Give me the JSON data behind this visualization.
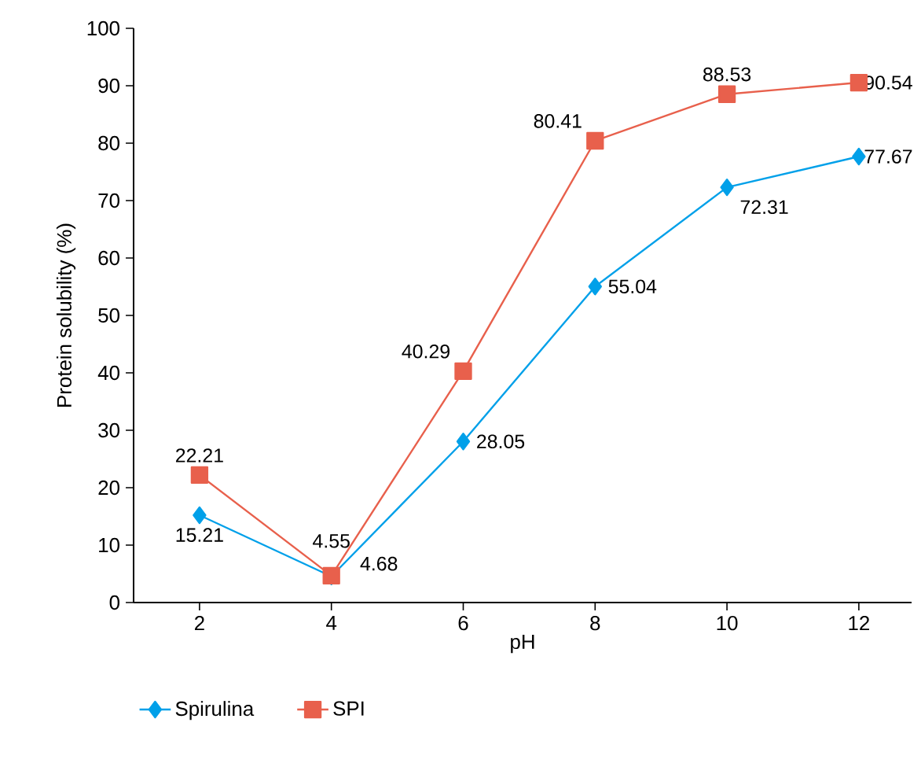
{
  "chart_data": {
    "type": "line",
    "xlabel": "pH",
    "ylabel": "Protein solubility (%)",
    "x": [
      2,
      4,
      6,
      8,
      10,
      12
    ],
    "xlim": [
      1,
      12.8
    ],
    "xticks": [
      2,
      4,
      6,
      8,
      10,
      12
    ],
    "ylim": [
      0,
      100
    ],
    "yticks": [
      0,
      10,
      20,
      30,
      40,
      50,
      60,
      70,
      80,
      90,
      100
    ],
    "series": [
      {
        "name": "Spirulina",
        "color": "#00a0e9",
        "marker": "diamond",
        "values": [
          15.21,
          4.55,
          28.05,
          55.04,
          72.31,
          77.67
        ]
      },
      {
        "name": "SPI",
        "color": "#e8604c",
        "marker": "square",
        "values": [
          22.21,
          4.68,
          40.29,
          80.41,
          88.53,
          90.54
        ]
      }
    ],
    "data_labels": true,
    "grid": false,
    "legend": "bottom",
    "line_style": "solid"
  }
}
